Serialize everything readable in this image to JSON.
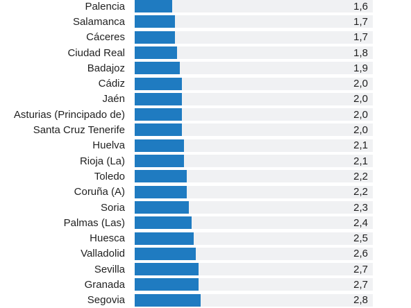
{
  "colors": {
    "bar": "#1f7bc1",
    "track": "#f0f1f3",
    "text": "#1f1f1f"
  },
  "chart_data": {
    "type": "bar",
    "orientation": "horizontal",
    "categories": [
      "Palencia",
      "Salamanca",
      "Cáceres",
      "Ciudad Real",
      "Badajoz",
      "Cádiz",
      "Jaén",
      "Asturias (Principado de)",
      "Santa Cruz Tenerife",
      "Huelva",
      "Rioja (La)",
      "Toledo",
      "Coruña (A)",
      "Soria",
      "Palmas (Las)",
      "Huesca",
      "Valladolid",
      "Sevilla",
      "Granada",
      "Segovia"
    ],
    "values": [
      1.6,
      1.7,
      1.7,
      1.8,
      1.9,
      2.0,
      2.0,
      2.0,
      2.0,
      2.1,
      2.1,
      2.2,
      2.2,
      2.3,
      2.4,
      2.5,
      2.6,
      2.7,
      2.7,
      2.8
    ],
    "value_labels": [
      "1,6",
      "1,7",
      "1,7",
      "1,8",
      "1,9",
      "2,0",
      "2,0",
      "2,0",
      "2,0",
      "2,1",
      "2,1",
      "2,2",
      "2,2",
      "2,3",
      "2,4",
      "2,5",
      "2,6",
      "2,7",
      "2,7",
      "2,8"
    ],
    "xlim": [
      0,
      10.1
    ],
    "grid": false
  }
}
